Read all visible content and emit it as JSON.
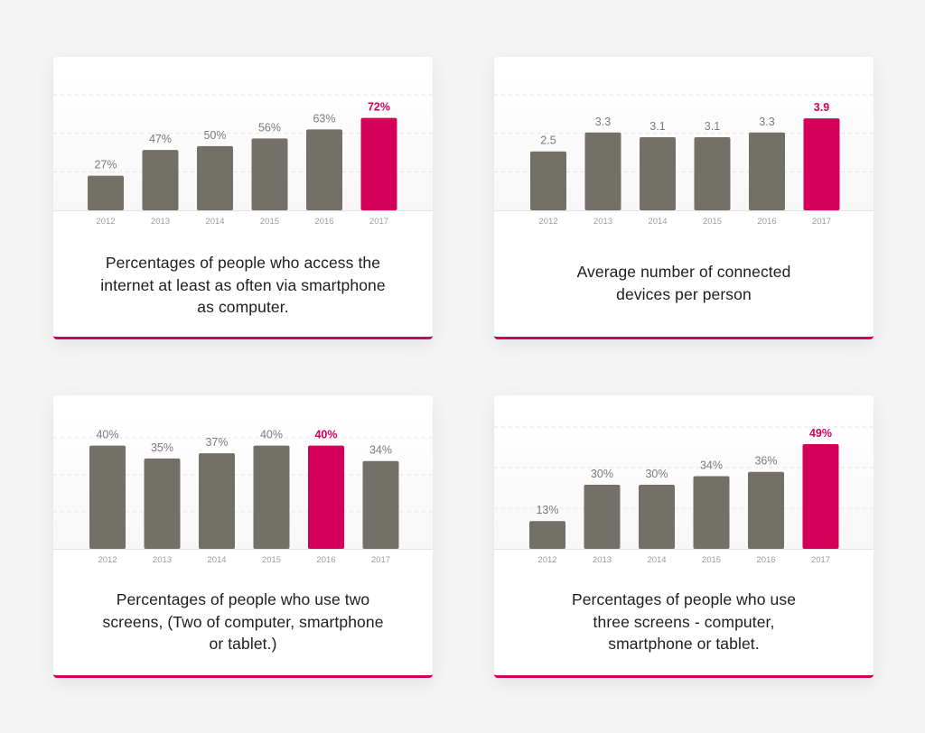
{
  "colors": {
    "bar": "#737068",
    "highlight": "#d4005a",
    "grid": "#e6e6e6",
    "axis": "#e3e3e3"
  },
  "chart_data": [
    {
      "type": "bar",
      "categories": [
        "2012",
        "2013",
        "2014",
        "2015",
        "2016",
        "2017"
      ],
      "values": [
        27,
        47,
        50,
        56,
        63,
        72
      ],
      "value_labels": [
        "27%",
        "47%",
        "50%",
        "56%",
        "63%",
        "72%"
      ],
      "highlight_index": 5,
      "ylim": [
        0,
        90
      ],
      "grid": true,
      "caption_lines": [
        "Percentages of people who access the",
        "internet at least as often via smartphone",
        "as computer."
      ]
    },
    {
      "type": "bar",
      "categories": [
        "2012",
        "2013",
        "2014",
        "2015",
        "2016",
        "2017"
      ],
      "values": [
        2.5,
        3.3,
        3.1,
        3.1,
        3.3,
        3.9
      ],
      "value_labels": [
        "2.5",
        "3.3",
        "3.1",
        "3.1",
        "3.3",
        "3.9"
      ],
      "highlight_index": 5,
      "ylim": [
        0,
        4.9
      ],
      "grid": true,
      "caption_lines": [
        "Average number of connected",
        "devices per person"
      ]
    },
    {
      "type": "bar",
      "categories": [
        "2012",
        "2013",
        "2014",
        "2015",
        "2016",
        "2017"
      ],
      "values": [
        40,
        35,
        37,
        40,
        40,
        34
      ],
      "value_labels": [
        "40%",
        "35%",
        "37%",
        "40%",
        "40%",
        "34%"
      ],
      "highlight_index": 4,
      "ylim": [
        0,
        43
      ],
      "grid": true,
      "caption_lines": [
        "Percentages of people who use two",
        "screens, (Two of computer, smartphone",
        "or tablet.)"
      ]
    },
    {
      "type": "bar",
      "categories": [
        "2012",
        "2013",
        "2014",
        "2015",
        "2016",
        "2017"
      ],
      "values": [
        13,
        30,
        30,
        34,
        36,
        49
      ],
      "value_labels": [
        "13%",
        "30%",
        "30%",
        "34%",
        "36%",
        "49%"
      ],
      "highlight_index": 5,
      "ylim": [
        0,
        57
      ],
      "grid": true,
      "caption_lines": [
        "Percentages of people who use",
        "three screens - computer,",
        "smartphone or tablet."
      ]
    }
  ]
}
